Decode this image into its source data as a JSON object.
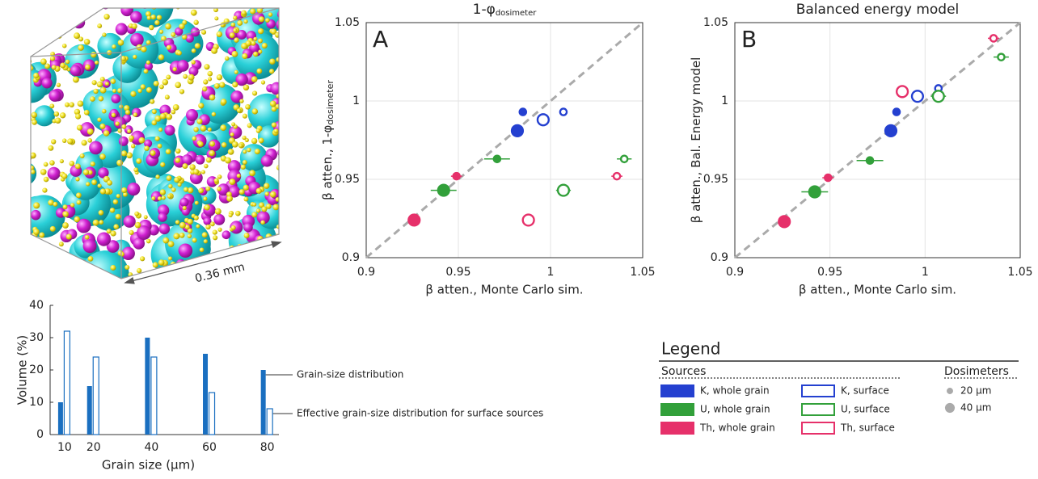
{
  "image": {
    "scale_label": "0.36 mm"
  },
  "chart_data": [
    {
      "type": "scatter",
      "panel": "A",
      "title": "1-φ",
      "title_sub": "dosimeter",
      "xlabel": "β atten., Monte Carlo sim.",
      "ylabel": "β atten., 1-φ",
      "ylabel_sub": "dosimeter",
      "xlim": [
        0.9,
        1.05
      ],
      "ylim": [
        0.9,
        1.05
      ],
      "xticks": [
        0.9,
        0.95,
        1,
        1.05
      ],
      "yticks": [
        0.9,
        0.95,
        1,
        1.05
      ],
      "grid": true,
      "series": [
        {
          "name": "K, whole grain",
          "color": "#2440d0",
          "filled": true,
          "x": [
            0.985,
            0.982
          ],
          "values": [
            0.993,
            0.981
          ],
          "dosimeter": [
            20,
            40
          ],
          "xerr": [
            0.002,
            0.002
          ]
        },
        {
          "name": "K, surface",
          "color": "#2440d0",
          "filled": false,
          "x": [
            1.007,
            0.996
          ],
          "values": [
            0.993,
            0.988
          ],
          "dosimeter": [
            20,
            40
          ],
          "xerr": [
            0.002,
            0.002
          ]
        },
        {
          "name": "U, whole grain",
          "color": "#32a03a",
          "filled": true,
          "x": [
            0.971,
            0.942
          ],
          "values": [
            0.963,
            0.943
          ],
          "dosimeter": [
            20,
            40
          ],
          "xerr": [
            0.007,
            0.007
          ]
        },
        {
          "name": "U, surface",
          "color": "#32a03a",
          "filled": false,
          "x": [
            1.04,
            1.007
          ],
          "values": [
            0.963,
            0.943
          ],
          "dosimeter": [
            20,
            40
          ],
          "xerr": [
            0.004,
            0.004
          ]
        },
        {
          "name": "Th, whole grain",
          "color": "#e6306a",
          "filled": true,
          "x": [
            0.949,
            0.926
          ],
          "values": [
            0.952,
            0.924
          ],
          "dosimeter": [
            20,
            40
          ],
          "xerr": [
            0.003,
            0.003
          ]
        },
        {
          "name": "Th, surface",
          "color": "#e6306a",
          "filled": false,
          "x": [
            1.036,
            0.988
          ],
          "values": [
            0.952,
            0.924
          ],
          "dosimeter": [
            20,
            40
          ],
          "xerr": [
            0.003,
            0.003
          ]
        }
      ]
    },
    {
      "type": "scatter",
      "panel": "B",
      "title": "Balanced energy model",
      "xlabel": "β atten., Monte Carlo sim.",
      "ylabel": "β atten., Bal. Energy model",
      "xlim": [
        0.9,
        1.05
      ],
      "ylim": [
        0.9,
        1.05
      ],
      "xticks": [
        0.9,
        0.95,
        1,
        1.05
      ],
      "yticks": [
        0.9,
        0.95,
        1,
        1.05
      ],
      "grid": true,
      "series": [
        {
          "name": "K, whole grain",
          "color": "#2440d0",
          "filled": true,
          "x": [
            0.985,
            0.982
          ],
          "values": [
            0.993,
            0.981
          ],
          "dosimeter": [
            20,
            40
          ],
          "xerr": [
            0.002,
            0.002
          ]
        },
        {
          "name": "K, surface",
          "color": "#2440d0",
          "filled": false,
          "x": [
            1.007,
            0.996
          ],
          "values": [
            1.008,
            1.003
          ],
          "dosimeter": [
            20,
            40
          ],
          "xerr": [
            0.002,
            0.002
          ]
        },
        {
          "name": "U, whole grain",
          "color": "#32a03a",
          "filled": true,
          "x": [
            0.971,
            0.942
          ],
          "values": [
            0.962,
            0.942
          ],
          "dosimeter": [
            20,
            40
          ],
          "xerr": [
            0.007,
            0.007
          ]
        },
        {
          "name": "U, surface",
          "color": "#32a03a",
          "filled": false,
          "x": [
            1.04,
            1.007
          ],
          "values": [
            1.028,
            1.003
          ],
          "dosimeter": [
            20,
            40
          ],
          "xerr": [
            0.004,
            0.004
          ]
        },
        {
          "name": "Th, whole grain",
          "color": "#e6306a",
          "filled": true,
          "x": [
            0.949,
            0.926
          ],
          "values": [
            0.951,
            0.923
          ],
          "dosimeter": [
            20,
            40
          ],
          "xerr": [
            0.003,
            0.003
          ]
        },
        {
          "name": "Th, surface",
          "color": "#e6306a",
          "filled": false,
          "x": [
            1.036,
            0.988
          ],
          "values": [
            1.04,
            1.006
          ],
          "dosimeter": [
            20,
            40
          ],
          "xerr": [
            0.003,
            0.003
          ]
        }
      ]
    },
    {
      "type": "bar",
      "xlabel": "Grain size (μm)",
      "ylabel": "Volume (%)",
      "x": [
        10,
        20,
        40,
        60,
        80
      ],
      "xlim": [
        5,
        84
      ],
      "xticks": [
        10,
        20,
        40,
        60,
        80
      ],
      "ylim": [
        0,
        40
      ],
      "yticks": [
        0,
        10,
        20,
        30,
        40
      ],
      "series": [
        {
          "name": "Grain-size distribution",
          "color": "#1a6fc0",
          "filled": true,
          "values": [
            10,
            15,
            30,
            25,
            20
          ]
        },
        {
          "name": "Effective grain-size distribution for surface sources",
          "color": "#1a6fc0",
          "filled": false,
          "values": [
            32,
            24,
            24,
            13,
            8
          ]
        }
      ]
    }
  ],
  "legend": {
    "title": "Legend",
    "sources_title": "Sources",
    "dosimeters_title": "Dosimeters",
    "dosimeters": [
      {
        "value": 20,
        "label": "20 µm"
      },
      {
        "value": 40,
        "label": "40 µm"
      }
    ]
  }
}
